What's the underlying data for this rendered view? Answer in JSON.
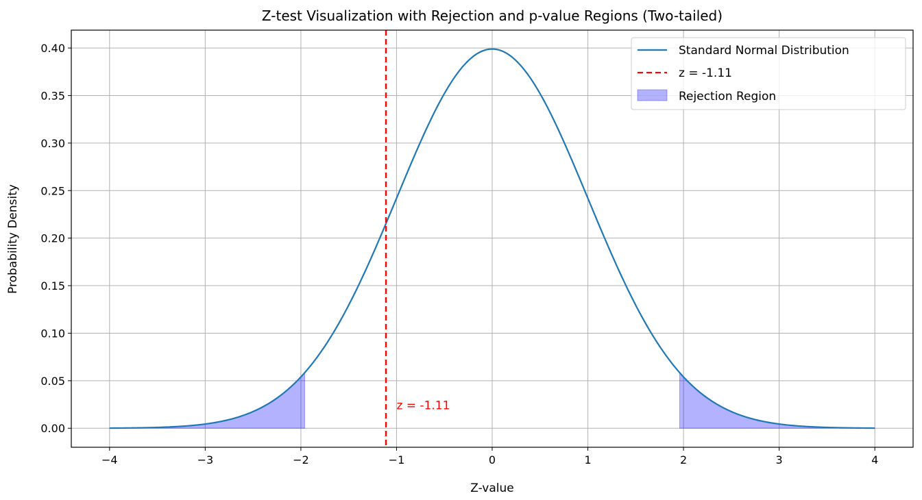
{
  "chart_data": {
    "type": "line",
    "title": "Z-test Visualization with Rejection and p-value Regions (Two-tailed)",
    "xlabel": "Z-value",
    "ylabel": "Probability Density",
    "xlim": [
      -4.4,
      4.4
    ],
    "ylim": [
      -0.02,
      0.4188
    ],
    "grid": true,
    "x_ticks": [
      -4,
      -3,
      -2,
      -1,
      0,
      1,
      2,
      3,
      4
    ],
    "x_tick_labels": [
      "−4",
      "−3",
      "−2",
      "−1",
      "0",
      "1",
      "2",
      "3",
      "4"
    ],
    "y_ticks": [
      0.0,
      0.05,
      0.1,
      0.15,
      0.2,
      0.25,
      0.3,
      0.35,
      0.4
    ],
    "y_tick_labels": [
      "0.00",
      "0.05",
      "0.10",
      "0.15",
      "0.20",
      "0.25",
      "0.30",
      "0.35",
      "0.40"
    ],
    "series": [
      {
        "name": "Standard Normal Distribution",
        "kind": "line",
        "color": "#1f77b4",
        "x": [
          -4.0,
          -3.75,
          -3.5,
          -3.25,
          -3.0,
          -2.75,
          -2.5,
          -2.25,
          -2.0,
          -1.75,
          -1.5,
          -1.25,
          -1.0,
          -0.75,
          -0.5,
          -0.25,
          0.0,
          0.25,
          0.5,
          0.75,
          1.0,
          1.25,
          1.5,
          1.75,
          2.0,
          2.25,
          2.5,
          2.75,
          3.0,
          3.25,
          3.5,
          3.75,
          4.0
        ],
        "y": [
          0.0001,
          0.0004,
          0.0009,
          0.002,
          0.0044,
          0.0091,
          0.0175,
          0.0317,
          0.054,
          0.0863,
          0.1295,
          0.1826,
          0.242,
          0.3011,
          0.3521,
          0.3867,
          0.3989,
          0.3867,
          0.3521,
          0.3011,
          0.242,
          0.1826,
          0.1295,
          0.0863,
          0.054,
          0.0317,
          0.0175,
          0.0091,
          0.0044,
          0.002,
          0.0009,
          0.0004,
          0.0001
        ]
      }
    ],
    "z_line": {
      "name": "z = -1.11",
      "x": -1.11,
      "color": "#ff0000",
      "style": "dashed"
    },
    "rejection_region": {
      "name": "Rejection Region",
      "color": "#0000ff",
      "alpha": 0.3,
      "left_tail": [
        -4.0,
        -1.96
      ],
      "right_tail": [
        1.96,
        4.0
      ]
    },
    "annotation": {
      "text": "z = -1.11",
      "x": -1.0,
      "y": 0.02,
      "color": "#ff0000"
    },
    "legend": {
      "position": "top-right",
      "entries": [
        "Standard Normal Distribution",
        "z = -1.11",
        "Rejection Region"
      ]
    }
  }
}
